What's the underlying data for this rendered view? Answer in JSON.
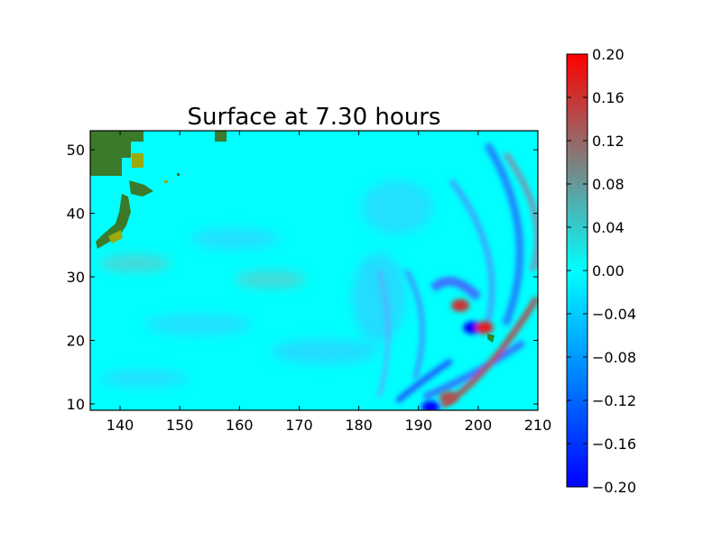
{
  "chart_data": {
    "type": "heatmap",
    "title": "Surface at 7.30 hours",
    "xlabel": "",
    "ylabel": "",
    "xlim": [
      135,
      210
    ],
    "ylim": [
      9,
      53
    ],
    "x_ticks": [
      "140",
      "150",
      "160",
      "170",
      "180",
      "190",
      "200",
      "210"
    ],
    "y_ticks": [
      "10",
      "20",
      "30",
      "40",
      "50"
    ],
    "grid": false,
    "colorbar": {
      "range": [
        -0.2,
        0.2
      ],
      "ticks": [
        "0.20",
        "0.16",
        "0.12",
        "0.08",
        "0.04",
        "0.00",
        "−0.04",
        "−0.08",
        "−0.12",
        "−0.16",
        "−0.20"
      ],
      "colors": [
        "#0000ff",
        "#00ffff",
        "#ff0000"
      ]
    },
    "background_color": "#00ffff",
    "land_color": "#3a7a2a",
    "land_highlight_color": "#9aaa10",
    "wave_features": [
      {
        "x": 199,
        "y": 22,
        "value": -0.2
      },
      {
        "x": 201,
        "y": 22,
        "value": 0.18
      },
      {
        "x": 197,
        "y": 25.5,
        "value": 0.16
      },
      {
        "x": 192,
        "y": 9.5,
        "value": -0.2
      },
      {
        "x": 195,
        "y": 11,
        "value": 0.14
      }
    ]
  }
}
